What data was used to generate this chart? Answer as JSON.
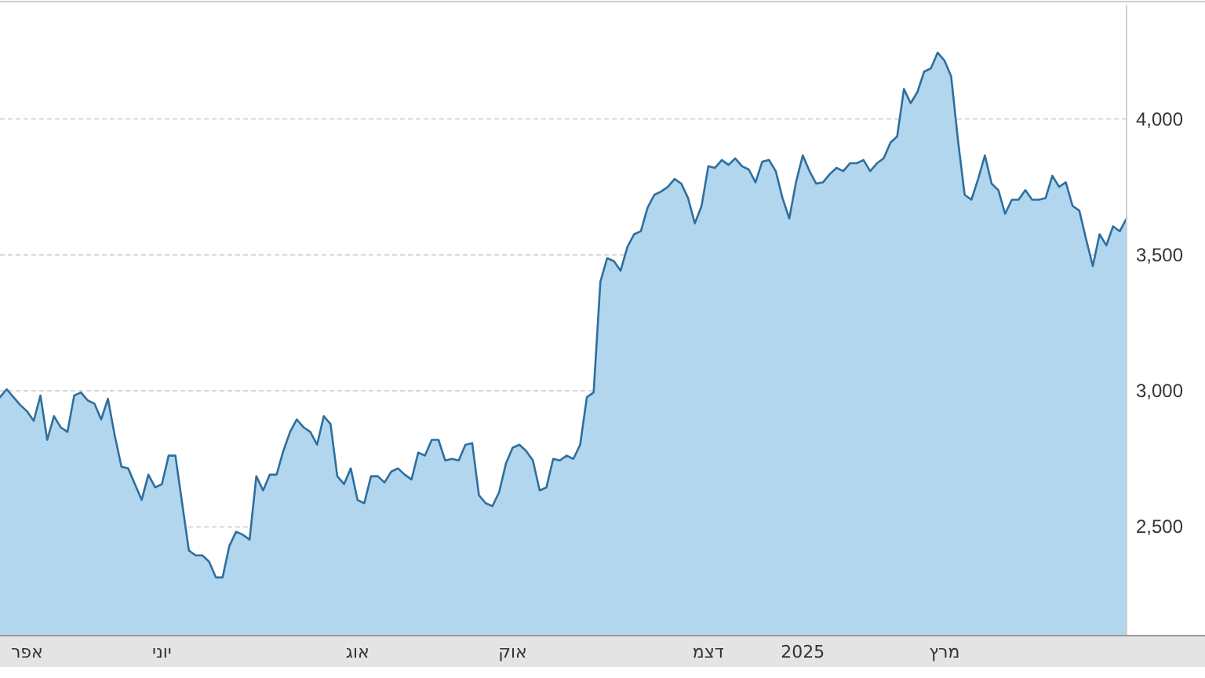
{
  "chart_data": {
    "type": "area",
    "categories": [
      null,
      null,
      null,
      null,
      "אפר",
      null,
      null,
      null,
      null,
      null,
      null,
      null,
      null,
      null,
      null,
      null,
      null,
      null,
      null,
      null,
      null,
      null,
      null,
      null,
      "יוני",
      null,
      null,
      null,
      null,
      null,
      null,
      null,
      null,
      null,
      null,
      null,
      null,
      null,
      null,
      null,
      null,
      null,
      null,
      null,
      null,
      null,
      null,
      null,
      null,
      null,
      null,
      null,
      null,
      "אוג",
      null,
      null,
      null,
      null,
      null,
      null,
      null,
      null,
      null,
      null,
      null,
      null,
      null,
      null,
      null,
      null,
      null,
      null,
      null,
      null,
      null,
      null,
      "אוק",
      null,
      null,
      null,
      null,
      null,
      null,
      null,
      null,
      null,
      null,
      null,
      null,
      null,
      null,
      null,
      null,
      null,
      null,
      null,
      null,
      null,
      null,
      null,
      null,
      null,
      null,
      null,
      null,
      "דצמ",
      null,
      null,
      null,
      null,
      null,
      null,
      null,
      null,
      null,
      null,
      null,
      null,
      null,
      "2025",
      null,
      null,
      null,
      null,
      null,
      null,
      null,
      null,
      null,
      null,
      null,
      null,
      null,
      null,
      null,
      null,
      null,
      null,
      null,
      null,
      "מרץ",
      null,
      null,
      null,
      null,
      null,
      null,
      null,
      null,
      null,
      null,
      null,
      null,
      null,
      null,
      null,
      null,
      null,
      null,
      null,
      null,
      null,
      null,
      null,
      null,
      null,
      null,
      null
    ],
    "series": [
      {
        "color": "#2e6f9e",
        "values": [
          2977,
          3006,
          2977,
          2948,
          2925,
          2890,
          2983,
          2820,
          2907,
          2866,
          2849,
          2983,
          2994,
          2965,
          2953,
          2895,
          2971,
          2837,
          2721,
          2715,
          2657,
          2599,
          2692,
          2645,
          2657,
          2762,
          2762,
          2587,
          2413,
          2395,
          2395,
          2372,
          2314,
          2314,
          2430,
          2482,
          2471,
          2453,
          2686,
          2634,
          2692,
          2692,
          2779,
          2849,
          2895,
          2866,
          2849,
          2802,
          2907,
          2878,
          2686,
          2657,
          2715,
          2599,
          2587,
          2686,
          2686,
          2663,
          2703,
          2715,
          2692,
          2674,
          2773,
          2762,
          2820,
          2820,
          2744,
          2750,
          2744,
          2802,
          2808,
          2616,
          2587,
          2576,
          2628,
          2733,
          2791,
          2802,
          2779,
          2744,
          2634,
          2645,
          2750,
          2744,
          2762,
          2750,
          2802,
          2977,
          2994,
          3401,
          3488,
          3477,
          3442,
          3529,
          3576,
          3587,
          3674,
          3721,
          3733,
          3750,
          3779,
          3762,
          3709,
          3616,
          3680,
          3826,
          3820,
          3849,
          3831,
          3855,
          3826,
          3814,
          3767,
          3843,
          3849,
          3808,
          3709,
          3634,
          3767,
          3866,
          3808,
          3762,
          3767,
          3797,
          3820,
          3808,
          3837,
          3837,
          3849,
          3808,
          3837,
          3855,
          3913,
          3936,
          4110,
          4058,
          4099,
          4174,
          4186,
          4244,
          4215,
          4157,
          3924,
          3721,
          3703,
          3779,
          3866,
          3762,
          3738,
          3651,
          3703,
          3703,
          3738,
          3703,
          3703,
          3709,
          3791,
          3750,
          3767,
          3680,
          3663,
          3558,
          3459,
          3576,
          3535,
          3605,
          3587,
          3634
        ]
      }
    ],
    "ylim": [
      2100,
      4420
    ],
    "yticks": [
      {
        "value": 2500,
        "label": "2,500"
      },
      {
        "value": 3000,
        "label": "3,000"
      },
      {
        "value": 3500,
        "label": "3,500"
      },
      {
        "value": 4000,
        "label": "4,000"
      }
    ],
    "grid": "y"
  }
}
